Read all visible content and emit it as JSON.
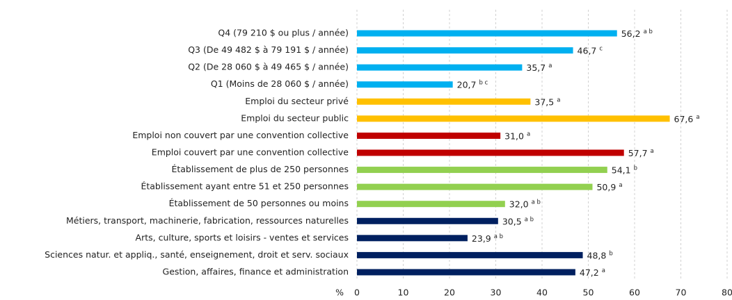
{
  "chart_data": {
    "type": "bar",
    "orientation": "horizontal",
    "categories": [
      "Q4 (79 210 $ ou plus / année)",
      "Q3 (De 49 482 $ à 79 191 $ / année)",
      "Q2 (De 28 060 $ à 49 465 $  / année)",
      "Q1 (Moins de 28 060 $ / année)",
      "Emploi du secteur privé",
      "Emploi du secteur public",
      "Emploi non couvert par une convention collective",
      "Emploi couvert par une convention collective",
      "Établissement de plus de 250 personnes",
      "Établissement ayant entre 51 et 250 personnes",
      "Établissement de 50 personnes ou moins",
      "Métiers, transport, machinerie, fabrication, ressources naturelles",
      "Arts, culture, sports et loisirs - ventes et services",
      "Sciences natur. et appliq., santé, enseignement, droit et serv. sociaux",
      "Gestion, affaires, finance et administration"
    ],
    "values": [
      56.2,
      46.7,
      35.7,
      20.7,
      37.5,
      67.6,
      31.0,
      57.7,
      54.1,
      50.9,
      32.0,
      30.5,
      23.9,
      48.8,
      47.2
    ],
    "value_labels": [
      "56,2",
      "46,7",
      "35,7",
      "20,7",
      "37,5",
      "67,6",
      "31,0",
      "57,7",
      "54,1",
      "50,9",
      "32,0",
      "30,5",
      "23,9",
      "48,8",
      "47,2"
    ],
    "notes": [
      "a b",
      "c",
      "a",
      "b c",
      "a",
      "a",
      "a",
      "a",
      "b",
      "a",
      "a b",
      "a b",
      "a b",
      "b",
      "a"
    ],
    "colors": [
      "#00b0f0",
      "#00b0f0",
      "#00b0f0",
      "#00b0f0",
      "#ffc000",
      "#ffc000",
      "#c00000",
      "#c00000",
      "#92d050",
      "#92d050",
      "#92d050",
      "#002060",
      "#002060",
      "#002060",
      "#002060"
    ],
    "x_label": "%",
    "xlim": [
      0,
      80
    ],
    "xticks": [
      0,
      10,
      20,
      30,
      40,
      50,
      60,
      70,
      80
    ],
    "grid": true
  }
}
